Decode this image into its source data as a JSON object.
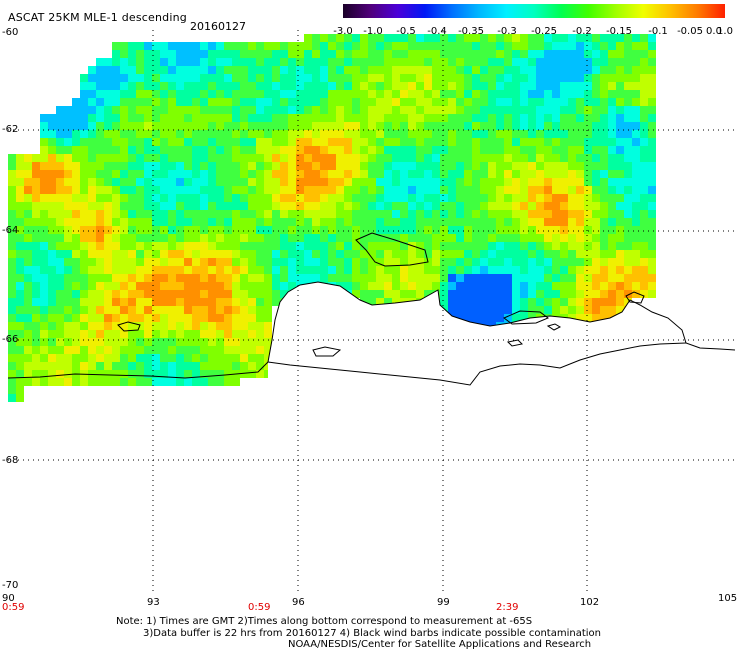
{
  "header": {
    "title": "ASCAT 25KM MLE-1 descending",
    "date": "20160127"
  },
  "legend": {
    "colors": [
      "#1a0028",
      "#50007a",
      "#4b00d8",
      "#0018f5",
      "#0070ff",
      "#00b8ff",
      "#00f0ff",
      "#00ffc0",
      "#00ff50",
      "#40ff00",
      "#a0ff00",
      "#f0ff00",
      "#ffc000",
      "#ff7a00",
      "#ff2000"
    ],
    "tick_labels": [
      "-3.0",
      "-1.0",
      "-0.5",
      "-0.4",
      "-0.35",
      "-0.3",
      "-0.25",
      "-0.2",
      "-0.15",
      "-0.1",
      "-0.05",
      "0.0",
      "1.0"
    ]
  },
  "axes": {
    "lat_labels": [
      "-60",
      "-62",
      "-64",
      "-66",
      "-68",
      "-70"
    ],
    "lon_labels": [
      "90",
      "93",
      "96",
      "99",
      "102",
      "105"
    ],
    "time_labels": [
      "0:59",
      "0:59",
      "2:39"
    ],
    "time_color": "#e00000"
  },
  "notes": {
    "line1": "Note: 1) Times are GMT 2)Times along bottom correspond to measurement at -65S",
    "line2": "3)Data buffer is 22 hrs from 20160127 4) Black wind barbs indicate possible contamination",
    "line3": "NOAA/NESDIS/Center for Satellite Applications and Research"
  },
  "map": {
    "grid": "dotted",
    "coastline_color": "#000000",
    "field_palette": [
      "#00ffe0",
      "#00ffa0",
      "#40ff40",
      "#80ff00",
      "#c0ff00",
      "#f0f000",
      "#ffc000",
      "#ff9000",
      "#00c0ff",
      "#0060ff",
      "#0000e0"
    ]
  }
}
